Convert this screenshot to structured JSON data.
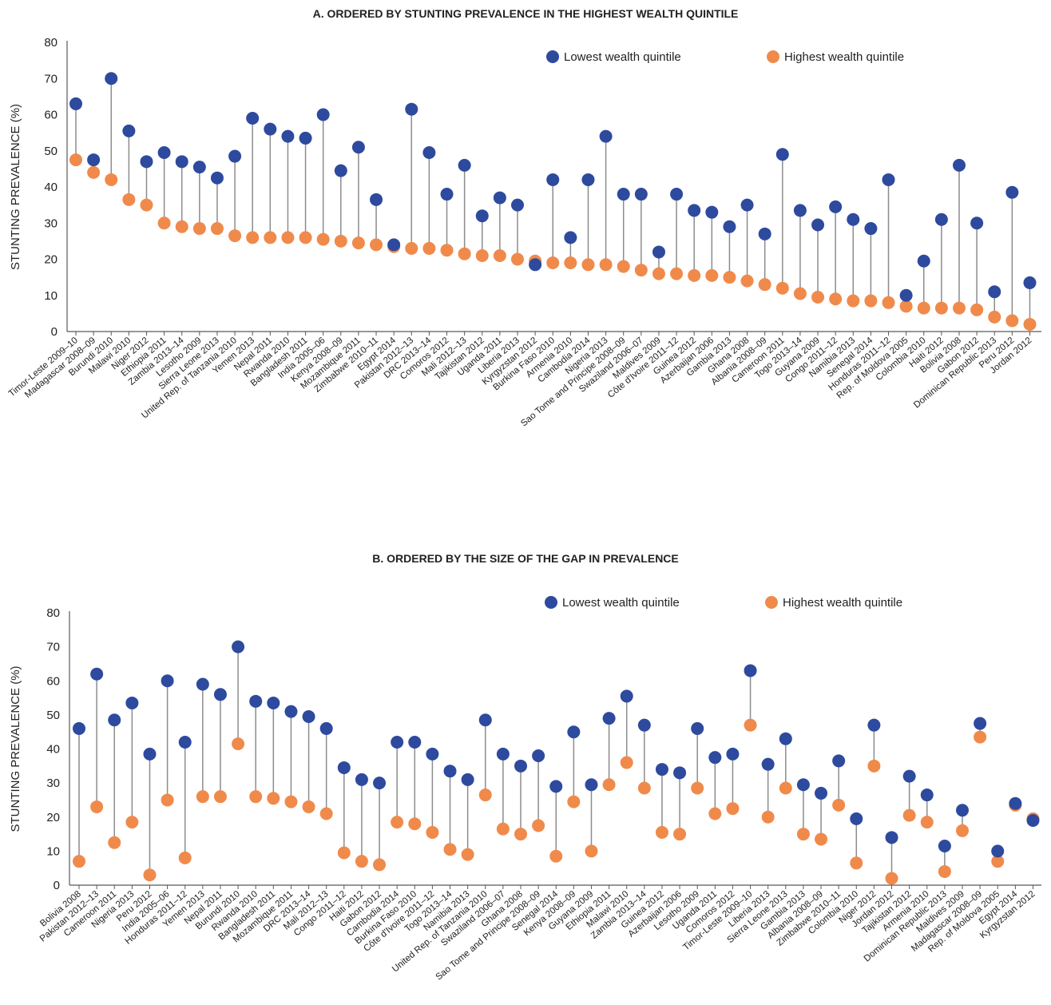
{
  "colors": {
    "lowest": "#2D4A9E",
    "highest": "#F08A4B",
    "stem": "#8C8C8C",
    "axis": "#595959"
  },
  "chart_data": [
    {
      "type": "dot-plot",
      "title": "A. ORDERED BY STUNTING PREVALENCE IN THE HIGHEST WEALTH QUINTILE",
      "ylabel": "STUNTING PREVALENCE (%)",
      "ylim": [
        0,
        80
      ],
      "yticks": [
        0,
        10,
        20,
        30,
        40,
        50,
        60,
        70,
        80
      ],
      "grid": false,
      "legend_position": "top-right",
      "categories": [
        "Timor-Leste 2009–10",
        "Madagascar 2008–09",
        "Burundi 2010",
        "Malawi 2010",
        "Niger 2012",
        "Ethiopia 2011",
        "Zambia 2013–14",
        "Lesotho 2009",
        "Sierra Leone 2013",
        "United Rep. of Tanzania 2010",
        "Yemen 2013",
        "Nepal 2011",
        "Rwanda 2010",
        "Bangladesh 2011",
        "India 2005–06",
        "Kenya 2008–09",
        "Mozambique 2011",
        "Zimbabwe 2010–11",
        "Egypt 2014",
        "Pakistan 2012–13",
        "DRC 2013–14",
        "Comoros 2012",
        "Mali 2012–13",
        "Tajikistan 2012",
        "Uganda 2011",
        "Liberia 2013",
        "Kyrgyzstan 2012",
        "Burkina Faso 2010",
        "Armenia 2010",
        "Cambodia 2014",
        "Nigeria 2013",
        "Sao Tome and Principe 2008–09",
        "Swaziland 2006–07",
        "Maldives 2009",
        "Côte d'Ivoire 2011–12",
        "Guinea 2012",
        "Azerbaijan 2006",
        "Gambia 2013",
        "Ghana 2008",
        "Albania 2008–09",
        "Cameroon 2011",
        "Togo 2013–14",
        "Guyana 2009",
        "Congo 2011–12",
        "Namibia 2013",
        "Senegal 2014",
        "Honduras 2011–12",
        "Rep. of Moldova 2005",
        "Colombia 2010",
        "Haiti 2012",
        "Bolivia 2008",
        "Gabon 2012",
        "Dominican Republic 2013",
        "Peru 2012",
        "Jordan 2012"
      ],
      "series": [
        {
          "name": "Lowest wealth quintile",
          "values": [
            63,
            47.5,
            70,
            55.5,
            47,
            49.5,
            47,
            45.5,
            42.5,
            48.5,
            59,
            56,
            54,
            53.5,
            60,
            44.5,
            51,
            36.5,
            24,
            61.5,
            49.5,
            38,
            46,
            32,
            37,
            35,
            18.5,
            42,
            26,
            42,
            54,
            38,
            38,
            22,
            38,
            33.5,
            33,
            29,
            35,
            27,
            49,
            33.5,
            29.5,
            34.5,
            31,
            28.5,
            42,
            10,
            19.5,
            31,
            46,
            30,
            11,
            38.5,
            13.5
          ]
        },
        {
          "name": "Highest wealth quintile",
          "values": [
            47.5,
            44,
            42,
            36.5,
            35,
            30,
            29,
            28.5,
            28.5,
            26.5,
            26,
            26,
            26,
            26,
            25.5,
            25,
            24.5,
            24,
            23.5,
            23,
            23,
            22.5,
            21.5,
            21,
            21,
            20,
            19.5,
            19,
            19,
            18.5,
            18.5,
            18,
            17,
            16,
            16,
            15.5,
            15.5,
            15,
            14,
            13,
            12,
            10.5,
            9.5,
            9,
            8.5,
            8.5,
            8,
            7,
            6.5,
            6.5,
            6.5,
            6,
            4,
            3,
            2
          ]
        }
      ]
    },
    {
      "type": "dot-plot",
      "title": "B.  ORDERED BY THE SIZE OF THE GAP IN PREVALENCE",
      "ylabel": "STUNTING PREVALENCE (%)",
      "ylim": [
        0,
        80
      ],
      "yticks": [
        0,
        10,
        20,
        30,
        40,
        50,
        60,
        70,
        80
      ],
      "grid": false,
      "legend_position": "top-right",
      "categories": [
        "Bolivia 2008",
        "Pakistan 2012–13",
        "Cameroon 2011",
        "Nigeria 2013",
        "Peru 2012",
        "India 2005–06",
        "Honduras 2011–12",
        "Yemen 2013",
        "Nepal 2011",
        "Burundi 2010",
        "Rwanda 2010",
        "Bangladesh 2011",
        "Mozambique 2011",
        "DRC 2013–14",
        "Mali 2012–13",
        "Congo 2011–12",
        "Haiti 2012",
        "Gabon 2012",
        "Cambodia 2014",
        "Burkina Faso 2010",
        "Côte d'Ivoire 2011–12",
        "Togo 2013–14",
        "Namibia 2013",
        "United Rep. of Tanzania 2010",
        "Swaziland 2006–07",
        "Ghana 2008",
        "Sao Tome and Principe 2008–09",
        "Senegal 2014",
        "Kenya 2008–09",
        "Guyana 2009",
        "Ethiopia 2011",
        "Malawi 2010",
        "Zambia 2013–14",
        "Guinea 2012",
        "Azerbaijan 2006",
        "Lesotho 2009",
        "Uganda 2011",
        "Comoros 2012",
        "Timor-Leste 2009–10",
        "Liberia 2013",
        "Sierra Leone 2013",
        "Gambia 2013",
        "Albania 2008–09",
        "Zimbabwe 2010–11",
        "Colombia 2010",
        "Niger 2012",
        "Jordan 2012",
        "Tajikistan 2012",
        "Armenia 2010",
        "Dominican Republic 2013",
        "Maldives 2009",
        "Madagascar 2008–09",
        "Rep. of Moldova 2005",
        "Egypt 2014",
        "Kyrgyzstan 2012"
      ],
      "series": [
        {
          "name": "Lowest wealth quintile",
          "values": [
            46,
            62,
            48.5,
            53.5,
            38.5,
            60,
            42,
            59,
            56,
            70,
            54,
            53.5,
            51,
            49.5,
            46,
            34.5,
            31,
            30,
            42,
            42,
            38.5,
            33.5,
            31,
            48.5,
            38.5,
            35,
            38,
            29,
            45,
            29.5,
            49,
            55.5,
            47,
            34,
            33,
            46,
            37.5,
            38.5,
            63,
            35.5,
            43,
            29.5,
            27,
            36.5,
            19.5,
            47,
            14,
            32,
            26.5,
            11.5,
            22,
            47.5,
            10,
            24,
            19
          ]
        },
        {
          "name": "Highest wealth quintile",
          "values": [
            7,
            23,
            12.5,
            18.5,
            3,
            25,
            8,
            26,
            26,
            41.5,
            26,
            25.5,
            24.5,
            23,
            21,
            9.5,
            7,
            6,
            18.5,
            18,
            15.5,
            10.5,
            9,
            26.5,
            16.5,
            15,
            17.5,
            8.5,
            24.5,
            10,
            29.5,
            36,
            28.5,
            15.5,
            15,
            28.5,
            21,
            22.5,
            47,
            20,
            28.5,
            15,
            13.5,
            23.5,
            6.5,
            35,
            2,
            20.5,
            18.5,
            4,
            16,
            43.5,
            7,
            23.5,
            19.5
          ]
        }
      ]
    }
  ]
}
